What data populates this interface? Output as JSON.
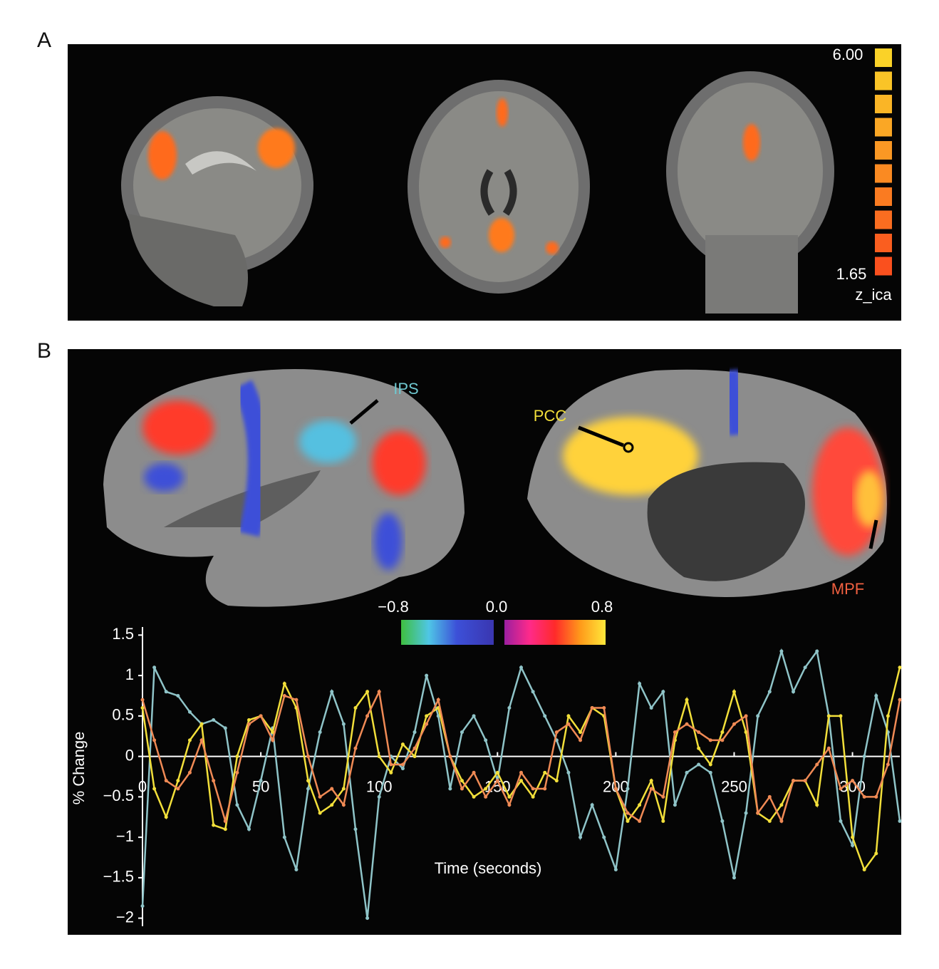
{
  "panels": {
    "a_label": "A",
    "b_label": "B"
  },
  "colorbar_a": {
    "max_label": "6.00",
    "min_label": "1.65",
    "unit": "z_ica"
  },
  "colorbar_b": {
    "labels": [
      "−0.8",
      "0.0",
      "0.8"
    ]
  },
  "regions": {
    "ips": "IPS",
    "pcc": "PCC",
    "mpf": "MPF"
  },
  "chart_data": {
    "type": "line",
    "xlabel": "Time (seconds)",
    "ylabel": "% Change",
    "xlim": [
      0,
      320
    ],
    "ylim": [
      -2.1,
      1.6
    ],
    "xticks": [
      0,
      50,
      100,
      150,
      200,
      250,
      300
    ],
    "yticks": [
      1.5,
      1,
      0.5,
      0,
      {
        "value": -0.5,
        "label": "−0.5"
      },
      {
        "value": -1,
        "label": "−1"
      },
      {
        "value": -1.5,
        "label": "−1.5"
      },
      {
        "value": -2,
        "label": "−2"
      }
    ],
    "x": [
      0,
      5,
      10,
      15,
      20,
      25,
      30,
      35,
      40,
      45,
      50,
      55,
      60,
      65,
      70,
      75,
      80,
      85,
      90,
      95,
      100,
      105,
      110,
      115,
      120,
      125,
      130,
      135,
      140,
      145,
      150,
      155,
      160,
      165,
      170,
      175,
      180,
      185,
      190,
      195,
      200,
      205,
      210,
      215,
      220,
      225,
      230,
      235,
      240,
      245,
      250,
      255,
      260,
      265,
      270,
      275,
      280,
      285,
      290,
      295,
      300,
      305,
      310,
      315,
      320
    ],
    "series": [
      {
        "color": "#8fc4c8",
        "values": [
          -1.85,
          1.1,
          0.8,
          0.75,
          0.55,
          0.4,
          0.45,
          0.35,
          -0.6,
          -0.9,
          -0.3,
          0.35,
          -1.0,
          -1.4,
          -0.4,
          0.3,
          0.8,
          0.4,
          -0.9,
          -2.0,
          -0.5,
          0.0,
          -0.15,
          0.3,
          1.0,
          0.5,
          -0.4,
          0.3,
          0.5,
          0.2,
          -0.3,
          0.6,
          1.1,
          0.8,
          0.5,
          0.2,
          -0.2,
          -1.0,
          -0.6,
          -1.0,
          -1.4,
          -0.4,
          0.9,
          0.6,
          0.8,
          -0.6,
          -0.2,
          -0.1,
          -0.2,
          -0.8,
          -1.5,
          -0.7,
          0.5,
          0.8,
          1.3,
          0.8,
          1.1,
          1.3,
          0.5,
          -0.8,
          -1.1,
          0.0,
          0.75,
          0.3,
          -0.8
        ]
      },
      {
        "color": "#f2df3a",
        "values": [
          0.6,
          -0.4,
          -0.75,
          -0.3,
          0.2,
          0.4,
          -0.85,
          -0.9,
          0.0,
          0.45,
          0.5,
          0.3,
          0.9,
          0.6,
          -0.3,
          -0.7,
          -0.6,
          -0.4,
          0.6,
          0.8,
          0.0,
          -0.2,
          0.15,
          0.0,
          0.5,
          0.6,
          0.0,
          -0.3,
          -0.5,
          -0.4,
          -0.2,
          -0.5,
          -0.3,
          -0.5,
          -0.2,
          -0.3,
          0.5,
          0.3,
          0.6,
          0.5,
          -0.4,
          -0.8,
          -0.6,
          -0.3,
          -0.8,
          0.2,
          0.7,
          0.1,
          -0.1,
          0.3,
          0.8,
          0.3,
          -0.7,
          -0.8,
          -0.6,
          -0.3,
          -0.3,
          -0.6,
          0.5,
          0.5,
          -1.0,
          -1.4,
          -1.2,
          0.5,
          1.1
        ]
      },
      {
        "color": "#f08a55",
        "values": [
          0.7,
          0.2,
          -0.3,
          -0.4,
          -0.2,
          0.2,
          -0.3,
          -0.8,
          -0.2,
          0.4,
          0.5,
          0.2,
          0.75,
          0.7,
          0.0,
          -0.5,
          -0.4,
          -0.6,
          0.1,
          0.5,
          0.8,
          -0.1,
          -0.1,
          0.1,
          0.4,
          0.7,
          0.0,
          -0.4,
          -0.2,
          -0.5,
          -0.3,
          -0.6,
          -0.2,
          -0.4,
          -0.4,
          0.3,
          0.4,
          0.2,
          0.6,
          0.6,
          -0.4,
          -0.7,
          -0.8,
          -0.4,
          -0.5,
          0.3,
          0.4,
          0.3,
          0.2,
          0.2,
          0.4,
          0.5,
          -0.7,
          -0.5,
          -0.8,
          -0.3,
          -0.3,
          -0.1,
          0.1,
          -0.4,
          -0.3,
          -0.5,
          -0.5,
          -0.1,
          0.7
        ]
      }
    ]
  }
}
